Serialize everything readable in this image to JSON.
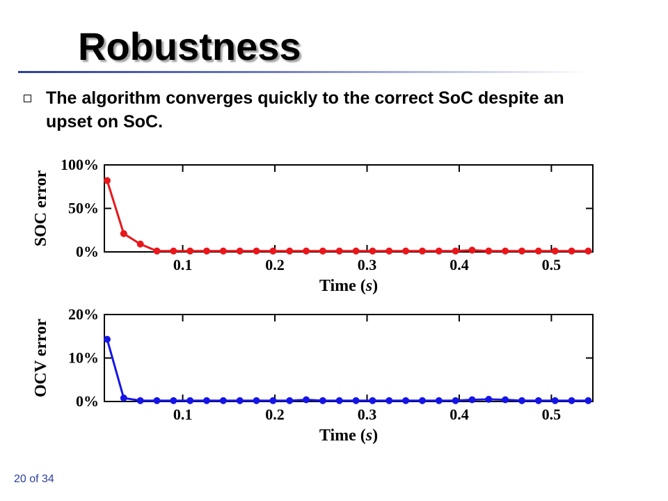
{
  "slide": {
    "title": "Robustness",
    "bullet": "The algorithm converges quickly to the correct SoC despite an upset on SoC.",
    "page_number": "20 of 34"
  },
  "colors": {
    "title_rule": "#2b3f9e",
    "soc_series": "#e8171b",
    "ocv_series": "#1515e6",
    "page_number": "#2b3f9e"
  },
  "chart_data": [
    {
      "type": "line",
      "title": "",
      "xlabel": "Time (s)",
      "ylabel": "SOC error",
      "xlim": [
        0.015,
        0.545
      ],
      "ylim": [
        0,
        1.0
      ],
      "x_ticks": [
        0.1,
        0.2,
        0.3,
        0.4,
        0.5
      ],
      "x_tick_labels": [
        "0.1",
        "0.2",
        "0.3",
        "0.4",
        "0.5"
      ],
      "y_ticks": [
        0,
        0.5,
        1.0
      ],
      "y_tick_labels": [
        "0%",
        "50%",
        "100%"
      ],
      "grid": false,
      "series": [
        {
          "color": "#e8171b",
          "x": [
            0.018,
            0.036,
            0.054,
            0.072,
            0.09,
            0.108,
            0.126,
            0.144,
            0.162,
            0.18,
            0.198,
            0.216,
            0.234,
            0.252,
            0.27,
            0.288,
            0.306,
            0.324,
            0.342,
            0.36,
            0.378,
            0.396,
            0.414,
            0.432,
            0.45,
            0.468,
            0.486,
            0.504,
            0.522,
            0.54
          ],
          "values": [
            0.82,
            0.21,
            0.09,
            0.01,
            0.01,
            0.01,
            0.01,
            0.01,
            0.01,
            0.01,
            0.01,
            0.01,
            0.01,
            0.01,
            0.01,
            0.01,
            0.01,
            0.01,
            0.01,
            0.01,
            0.01,
            0.01,
            0.02,
            0.01,
            0.01,
            0.01,
            0.01,
            0.01,
            0.01,
            0.01
          ]
        }
      ]
    },
    {
      "type": "line",
      "title": "",
      "xlabel": "Time (s)",
      "ylabel": "OCV error",
      "xlim": [
        0.015,
        0.545
      ],
      "ylim": [
        0,
        0.2
      ],
      "x_ticks": [
        0.1,
        0.2,
        0.3,
        0.4,
        0.5
      ],
      "x_tick_labels": [
        "0.1",
        "0.2",
        "0.3",
        "0.4",
        "0.5"
      ],
      "y_ticks": [
        0,
        0.1,
        0.2
      ],
      "y_tick_labels": [
        "0%",
        "10%",
        "20%"
      ],
      "grid": false,
      "series": [
        {
          "color": "#1515e6",
          "x": [
            0.018,
            0.036,
            0.054,
            0.072,
            0.09,
            0.108,
            0.126,
            0.144,
            0.162,
            0.18,
            0.198,
            0.216,
            0.234,
            0.252,
            0.27,
            0.288,
            0.306,
            0.324,
            0.342,
            0.36,
            0.378,
            0.396,
            0.414,
            0.432,
            0.45,
            0.468,
            0.486,
            0.504,
            0.522,
            0.54
          ],
          "values": [
            0.143,
            0.008,
            0.002,
            0.002,
            0.002,
            0.002,
            0.002,
            0.002,
            0.002,
            0.002,
            0.002,
            0.002,
            0.004,
            0.002,
            0.002,
            0.002,
            0.002,
            0.002,
            0.002,
            0.002,
            0.002,
            0.002,
            0.004,
            0.005,
            0.004,
            0.002,
            0.002,
            0.002,
            0.002,
            0.002
          ]
        }
      ]
    }
  ]
}
